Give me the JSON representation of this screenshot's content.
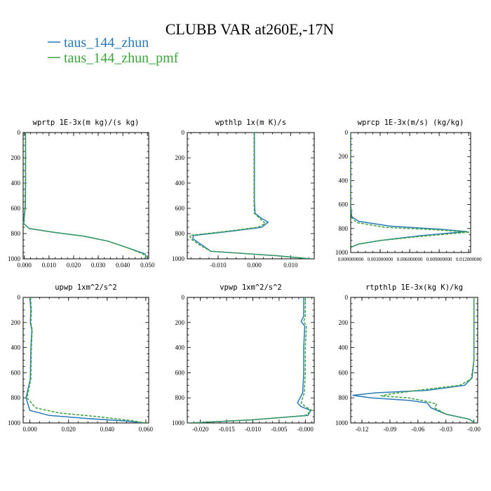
{
  "title": "CLUBB VAR at260E,-17N",
  "legend": [
    {
      "label": "taus_144_zhun",
      "color": "#2a7ab9",
      "dash": "solid"
    },
    {
      "label": "taus_144_zhun_pmf",
      "color": "#3aa33a",
      "dash": "dashed"
    }
  ],
  "chart_data": [
    {
      "type": "line",
      "title": "wprtp  1E-3x(m kg)/(s kg)",
      "xticks": [
        "0.000",
        "0.010",
        "0.020",
        "0.030",
        "0.040",
        "0.050"
      ],
      "xtick_values": [
        0,
        0.01,
        0.02,
        0.03,
        0.04,
        0.05
      ],
      "xlim": [
        -0.0005,
        0.0505
      ],
      "yticks": [
        "0",
        "200",
        "400",
        "600",
        "800",
        "1000"
      ],
      "ylim": [
        0,
        1000
      ],
      "y_inverted": true,
      "series": [
        {
          "name": "taus_144_zhun",
          "x": [
            0.0005,
            0.0005,
            0.0005,
            0.0004,
            0.0002,
            -0.0003,
            0.002,
            0.012,
            0.024,
            0.034,
            0.043,
            0.049,
            0.0495,
            0.0485
          ],
          "y": [
            0,
            200,
            400,
            580,
            620,
            720,
            760,
            790,
            820,
            860,
            920,
            960,
            985,
            1000
          ]
        },
        {
          "name": "taus_144_zhun_pmf",
          "x": [
            0.0004,
            0.0004,
            0.0004,
            0.0003,
            0.0001,
            -0.0004,
            0.002,
            0.012,
            0.024,
            0.034,
            0.043,
            0.048,
            0.0495,
            0.0488
          ],
          "y": [
            0,
            200,
            400,
            580,
            620,
            720,
            760,
            790,
            820,
            860,
            920,
            960,
            985,
            1000
          ]
        }
      ]
    },
    {
      "type": "line",
      "title": "wpthlp  1x(m K)/s",
      "xticks": [
        "-0.010",
        "0.000",
        "0.010"
      ],
      "xtick_values": [
        -0.01,
        0.0,
        0.01
      ],
      "xlim": [
        -0.0185,
        0.0165
      ],
      "yticks": [
        "0",
        "200",
        "400",
        "600",
        "800",
        "1000"
      ],
      "ylim": [
        0,
        1000
      ],
      "y_inverted": true,
      "series": [
        {
          "name": "taus_144_zhun",
          "x": [
            0.0,
            0.0,
            0.0,
            0.0002,
            0.002,
            0.0038,
            0.002,
            -0.006,
            -0.0168,
            -0.017,
            -0.014,
            -0.012,
            0.006,
            0.0155
          ],
          "y": [
            0,
            300,
            550,
            640,
            680,
            710,
            750,
            780,
            815,
            840,
            900,
            940,
            975,
            1000
          ]
        },
        {
          "name": "taus_144_zhun_pmf",
          "x": [
            -0.0001,
            -0.0001,
            -0.0001,
            0.0,
            0.0015,
            0.003,
            0.001,
            -0.007,
            -0.0178,
            -0.0174,
            -0.0145,
            -0.012,
            0.006,
            0.0155
          ],
          "y": [
            0,
            300,
            550,
            640,
            680,
            720,
            750,
            780,
            815,
            845,
            900,
            940,
            975,
            1000
          ]
        }
      ]
    },
    {
      "type": "line",
      "title": "wprcp  1E-3x(m/s) (kg/kg)",
      "xticks": [
        "0.000000000",
        "0.003000000",
        "0.006000000",
        "0.009000000",
        "0.012000000"
      ],
      "xtick_values": [
        0,
        0.003,
        0.006,
        0.009,
        0.012
      ],
      "xlim": [
        0,
        0.0122
      ],
      "yticks": [
        "0",
        "200",
        "400",
        "600",
        "800",
        "1000"
      ],
      "ylim": [
        0,
        1000
      ],
      "y_inverted": true,
      "series": [
        {
          "name": "taus_144_zhun",
          "x": [
            0.0,
            0.0,
            0.0,
            0.0001,
            0.0008,
            0.004,
            0.009,
            0.0118,
            0.007,
            0.003,
            0.0008,
            0.0002,
            0.0
          ],
          "y": [
            0,
            300,
            600,
            700,
            740,
            780,
            805,
            825,
            860,
            900,
            930,
            950,
            960
          ]
        },
        {
          "name": "taus_144_zhun_pmf",
          "x": [
            0.0,
            0.0,
            0.0,
            0.0001,
            0.0006,
            0.0035,
            0.0085,
            0.0121,
            0.0072,
            0.003,
            0.0008,
            0.0002,
            0.0
          ],
          "y": [
            0,
            300,
            600,
            710,
            750,
            790,
            810,
            830,
            865,
            900,
            930,
            950,
            960
          ]
        }
      ]
    },
    {
      "type": "line",
      "title": "upwp  1xm^2/s^2",
      "xticks": [
        "0.000",
        "0.020",
        "0.040",
        "0.060"
      ],
      "xtick_values": [
        0,
        0.02,
        0.04,
        0.06
      ],
      "xlim": [
        -0.0035,
        0.0615
      ],
      "yticks": [
        "0",
        "200",
        "400",
        "600",
        "800",
        "1000"
      ],
      "ylim": [
        0,
        1000
      ],
      "y_inverted": true,
      "series": [
        {
          "name": "taus_144_zhun",
          "x": [
            0.0,
            0.0005,
            0.0002,
            0.001,
            0.0005,
            0.0002,
            -0.002,
            0.0,
            0.01,
            0.03,
            0.05,
            0.059
          ],
          "y": [
            0,
            100,
            200,
            260,
            400,
            650,
            800,
            900,
            940,
            965,
            985,
            1000
          ]
        },
        {
          "name": "taus_144_zhun_pmf",
          "x": [
            0.0003,
            0.0008,
            0.0005,
            0.0012,
            0.0008,
            0.0005,
            -0.0015,
            0.003,
            0.015,
            0.035,
            0.052,
            0.06
          ],
          "y": [
            0,
            100,
            200,
            260,
            400,
            650,
            800,
            880,
            920,
            950,
            980,
            1000
          ]
        }
      ]
    },
    {
      "type": "line",
      "title": "vpwp  1xm^2/s^2",
      "xticks": [
        "-0.020",
        "-0.015",
        "-0.010",
        "-0.005",
        "-0.000"
      ],
      "xtick_values": [
        -0.02,
        -0.015,
        -0.01,
        -0.005,
        0.0
      ],
      "xlim": [
        -0.0225,
        0.0017
      ],
      "yticks": [
        "0",
        "200",
        "400",
        "600",
        "800",
        "1000"
      ],
      "ylim": [
        0,
        1000
      ],
      "y_inverted": true,
      "series": [
        {
          "name": "taus_144_zhun",
          "x": [
            -0.0003,
            -0.0003,
            -0.0008,
            -0.0001,
            -0.0003,
            -0.0003,
            -0.0005,
            -0.0015,
            -0.0008,
            0.001,
            0.0005,
            -0.01,
            -0.022
          ],
          "y": [
            0,
            150,
            190,
            230,
            400,
            600,
            760,
            840,
            870,
            900,
            940,
            975,
            1000
          ]
        },
        {
          "name": "taus_144_zhun_pmf",
          "x": [
            0.0,
            0.0,
            -0.0003,
            0.0002,
            0.0,
            0.0,
            -0.0002,
            -0.0008,
            0.0,
            0.0012,
            0.0,
            -0.01,
            -0.022
          ],
          "y": [
            0,
            150,
            190,
            230,
            400,
            600,
            760,
            840,
            870,
            900,
            940,
            975,
            1000
          ]
        }
      ]
    },
    {
      "type": "line",
      "title": "rtpthlp  1E-3x(kg K)/kg",
      "xticks": [
        "-0.12",
        "-0.09",
        "-0.06",
        "-0.03",
        "-0.00"
      ],
      "xtick_values": [
        -0.12,
        -0.09,
        -0.06,
        -0.03,
        0.0
      ],
      "xlim": [
        -0.132,
        0.004
      ],
      "yticks": [
        "0",
        "200",
        "400",
        "600",
        "800",
        "1000"
      ],
      "ylim": [
        0,
        1000
      ],
      "y_inverted": true,
      "series": [
        {
          "name": "taus_144_zhun",
          "x": [
            0.0,
            0.0,
            -0.002,
            -0.01,
            -0.05,
            -0.105,
            -0.13,
            -0.11,
            -0.07,
            -0.05,
            -0.046,
            -0.03,
            -0.005,
            0.001
          ],
          "y": [
            0,
            500,
            640,
            700,
            740,
            760,
            780,
            800,
            820,
            840,
            880,
            930,
            970,
            1000
          ]
        },
        {
          "name": "taus_144_zhun_pmf",
          "x": [
            0.0,
            0.0,
            -0.003,
            -0.015,
            -0.06,
            -0.09,
            -0.1,
            -0.07,
            -0.05,
            -0.04,
            -0.042,
            -0.03,
            -0.005,
            0.001
          ],
          "y": [
            0,
            500,
            650,
            700,
            740,
            770,
            785,
            800,
            830,
            850,
            880,
            930,
            970,
            1000
          ]
        }
      ]
    }
  ]
}
